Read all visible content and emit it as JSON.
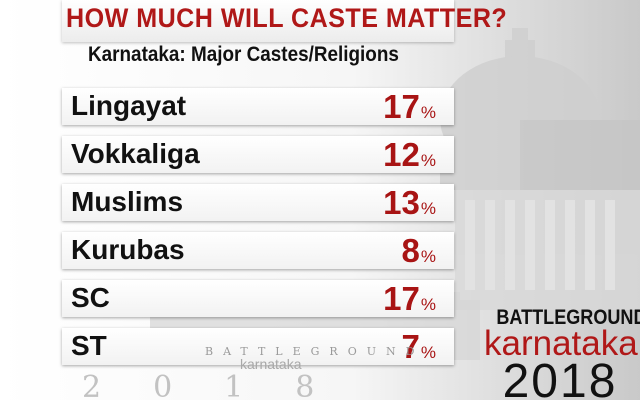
{
  "chart_data": {
    "type": "table",
    "title": "HOW MUCH WILL CASTE MATTER?",
    "subtitle": "Karnataka: Major Castes/Religions",
    "value_suffix": "%",
    "categories": [
      "Lingayat",
      "Vokkaliga",
      "Muslims",
      "Kurubas",
      "SC",
      "ST"
    ],
    "values": [
      17,
      12,
      13,
      8,
      17,
      7
    ],
    "rows": [
      {
        "label": "Lingayat",
        "value": "17"
      },
      {
        "label": "Vokkaliga",
        "value": "12"
      },
      {
        "label": "Muslims",
        "value": "13"
      },
      {
        "label": "Kurubas",
        "value": "8"
      },
      {
        "label": "SC",
        "value": "17"
      },
      {
        "label": "ST",
        "value": "7"
      }
    ]
  },
  "branding": {
    "line1": "BATTLEGROUND",
    "line2": "karnataka",
    "line3": "2018"
  },
  "colors": {
    "title": "#b01818",
    "value": "#a81414",
    "label": "#111111"
  }
}
